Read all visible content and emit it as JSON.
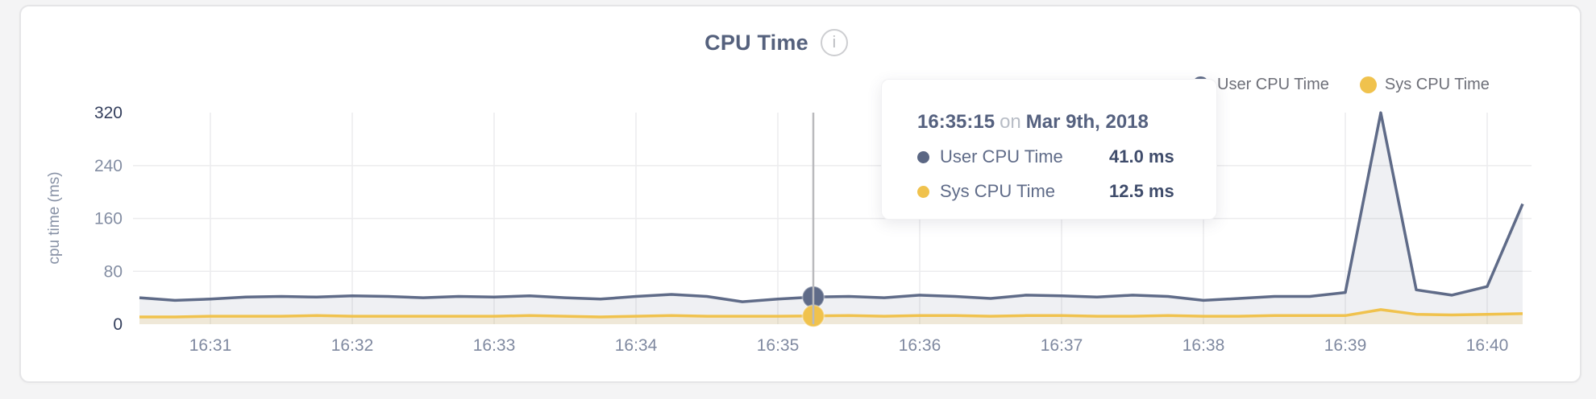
{
  "header": {
    "title": "CPU Time",
    "info_icon_glyph": "i"
  },
  "legend": {
    "items": [
      {
        "label": "User CPU Time",
        "color": "#5f6b88"
      },
      {
        "label": "Sys CPU Time",
        "color": "#f0c24d"
      }
    ]
  },
  "tooltip": {
    "time": "16:35:15",
    "connector": "on",
    "date": "Mar 9th, 2018",
    "rows": [
      {
        "label": "User CPU Time",
        "value": "41.0 ms",
        "color": "#5b6784"
      },
      {
        "label": "Sys CPU Time",
        "value": "12.5 ms",
        "color": "#f0c24d"
      }
    ]
  },
  "chart_data": {
    "type": "area",
    "title": "CPU Time",
    "ylabel": "cpu time (ms)",
    "ylim": [
      0,
      360
    ],
    "grid": true,
    "legend_position": "top-right",
    "y_ticks": [
      0,
      80,
      160,
      240,
      320
    ],
    "x_ticks": [
      "16:31",
      "16:32",
      "16:33",
      "16:34",
      "16:35",
      "16:36",
      "16:37",
      "16:38",
      "16:39",
      "16:40"
    ],
    "x": [
      "16:30:30",
      "16:30:45",
      "16:31:00",
      "16:31:15",
      "16:31:30",
      "16:31:45",
      "16:32:00",
      "16:32:15",
      "16:32:30",
      "16:32:45",
      "16:33:00",
      "16:33:15",
      "16:33:30",
      "16:33:45",
      "16:34:00",
      "16:34:15",
      "16:34:30",
      "16:34:45",
      "16:35:00",
      "16:35:15",
      "16:35:30",
      "16:35:45",
      "16:36:00",
      "16:36:15",
      "16:36:30",
      "16:36:45",
      "16:37:00",
      "16:37:15",
      "16:37:30",
      "16:37:45",
      "16:38:00",
      "16:38:15",
      "16:38:30",
      "16:38:45",
      "16:39:00",
      "16:39:15",
      "16:39:30",
      "16:39:45",
      "16:40:00",
      "16:40:15"
    ],
    "series": [
      {
        "name": "User CPU Time",
        "color": "#5f6b88",
        "fill": "rgba(95,107,136,0.10)",
        "values": [
          40,
          36,
          38,
          41,
          42,
          41,
          43,
          42,
          40,
          42,
          41,
          43,
          40,
          38,
          42,
          45,
          42,
          34,
          38,
          41,
          42,
          40,
          44,
          42,
          39,
          44,
          43,
          41,
          44,
          42,
          36,
          39,
          42,
          42,
          48,
          320,
          52,
          44,
          57,
          182
        ]
      },
      {
        "name": "Sys CPU Time",
        "color": "#f0c24d",
        "fill": "rgba(240,194,77,0.16)",
        "values": [
          11,
          11,
          12,
          12,
          12,
          13,
          12,
          12,
          12,
          12,
          12,
          13,
          12,
          11,
          12,
          13,
          12,
          12,
          12,
          12.5,
          13,
          12,
          13,
          13,
          12,
          13,
          13,
          12,
          12,
          13,
          12,
          12,
          13,
          13,
          13,
          22,
          15,
          14,
          15,
          16
        ]
      }
    ],
    "hover": {
      "x": "16:35:15",
      "values": {
        "User CPU Time": 41.0,
        "Sys CPU Time": 12.5
      },
      "unit": "ms"
    },
    "colors": {
      "grid": "#ececee",
      "hover_line": "#bababd",
      "tick_major": "#333e5c",
      "tick_minor": "#848ea3",
      "x_tick": "#7f89a0"
    }
  }
}
